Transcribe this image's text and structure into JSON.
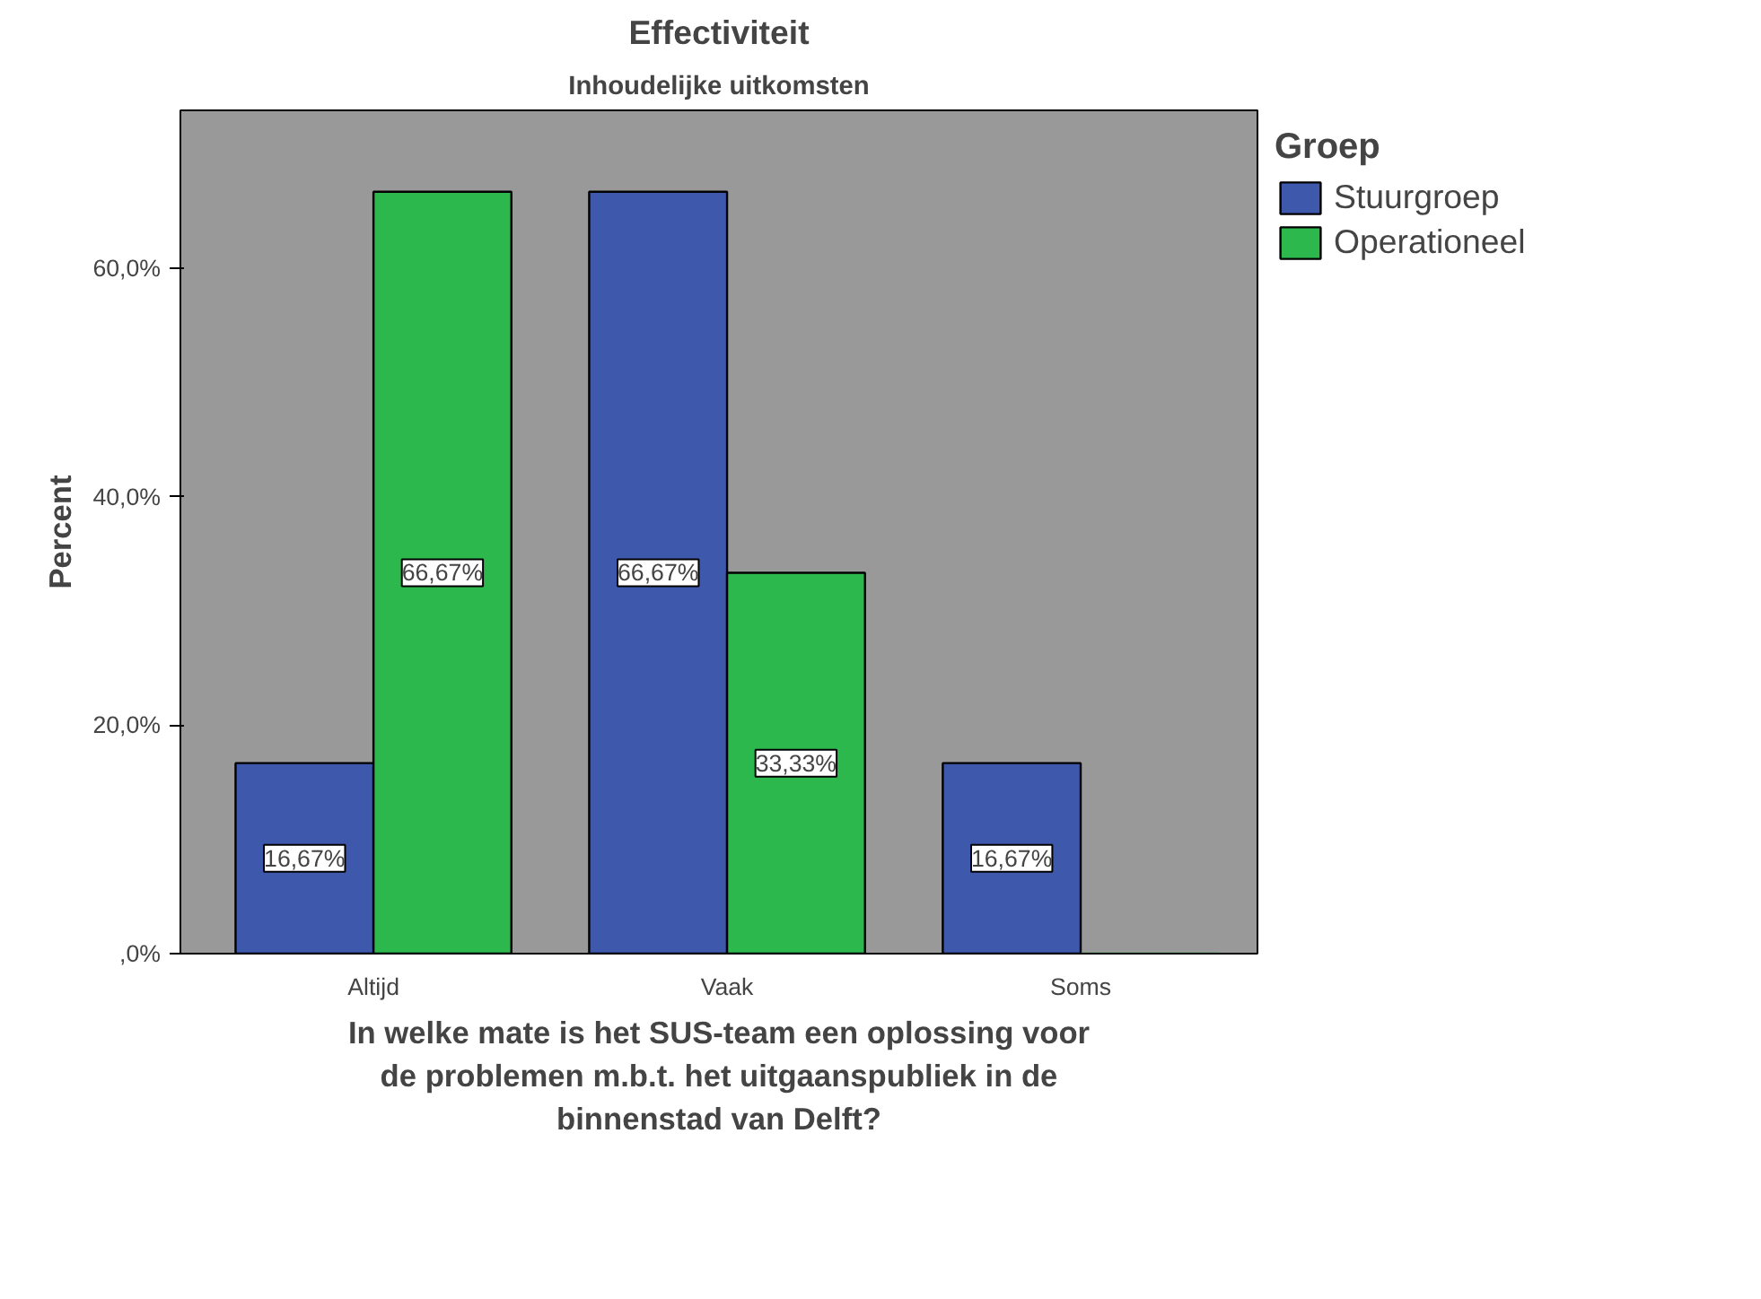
{
  "chart_data": {
    "type": "bar",
    "title": "Effectiviteit",
    "subtitle": "Inhoudelijke uitkomsten",
    "xlabel": "In welke mate is het SUS-team een oplossing voor\nde problemen m.b.t. het uitgaanspubliek in de\nbinnenstad van Delft?",
    "ylabel": "Percent",
    "legend_title": "Groep",
    "categories": [
      "Altijd",
      "Vaak",
      "Soms"
    ],
    "series": [
      {
        "name": "Stuurgroep",
        "color": "#3e58ac",
        "values": [
          16.67,
          66.67,
          16.67
        ],
        "value_labels": [
          "16,67%",
          "66,67%",
          "16,67%"
        ]
      },
      {
        "name": "Operationeel",
        "color": "#2db84d",
        "values": [
          66.67,
          33.33,
          0
        ],
        "value_labels": [
          "66,67%",
          "33,33%",
          null
        ]
      }
    ],
    "ylim": [
      0,
      73.8
    ],
    "yticks": [
      {
        "value": 0,
        "label": ",0%"
      },
      {
        "value": 20,
        "label": "20,0%"
      },
      {
        "value": 40,
        "label": "40,0%"
      },
      {
        "value": 60,
        "label": "60,0%"
      }
    ],
    "grid": false,
    "legend": "right"
  }
}
